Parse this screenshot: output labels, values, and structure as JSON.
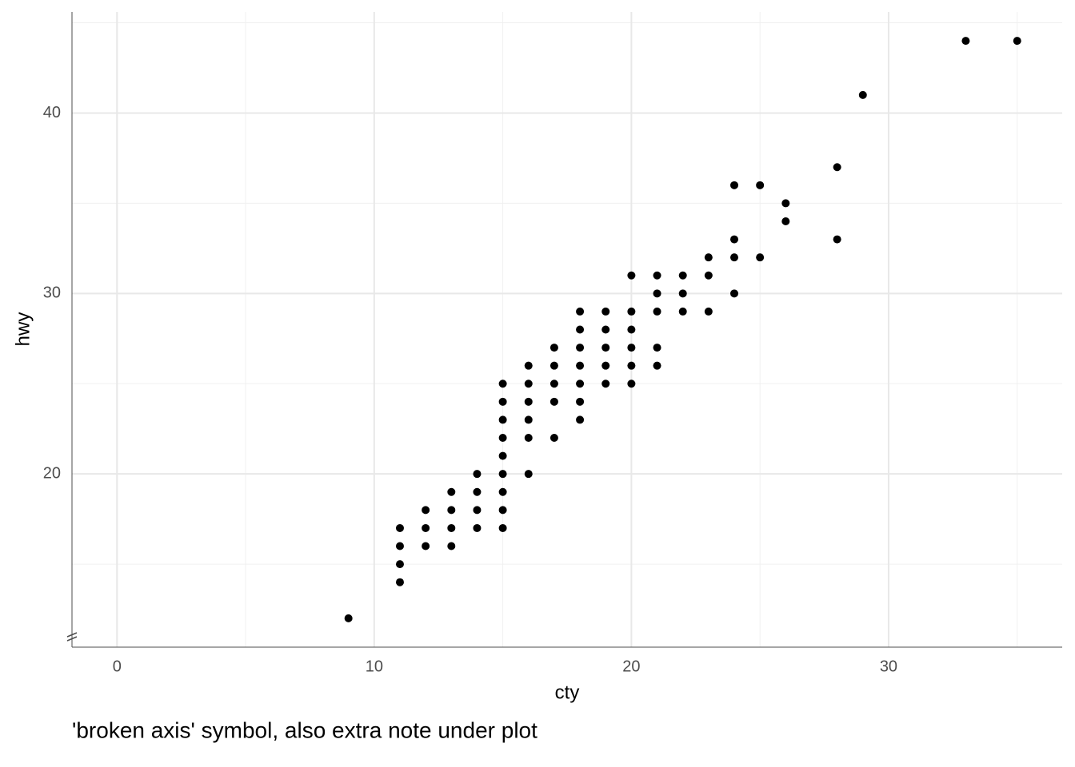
{
  "chart_data": {
    "type": "scatter",
    "x_label": "cty",
    "y_label": "hwy",
    "caption": "'broken axis' symbol, also extra note under plot",
    "color": "#000000",
    "x": [
      9,
      11,
      11,
      11,
      11,
      12,
      12,
      12,
      13,
      13,
      13,
      13,
      14,
      14,
      14,
      14,
      15,
      15,
      15,
      15,
      15,
      15,
      15,
      15,
      15,
      16,
      16,
      16,
      16,
      16,
      16,
      17,
      17,
      17,
      17,
      17,
      18,
      18,
      18,
      18,
      18,
      18,
      18,
      19,
      19,
      19,
      19,
      19,
      20,
      20,
      20,
      20,
      20,
      20,
      21,
      21,
      21,
      21,
      21,
      22,
      22,
      22,
      23,
      23,
      23,
      24,
      24,
      24,
      24,
      25,
      25,
      26,
      26,
      28,
      28,
      29,
      33,
      35
    ],
    "values": [
      12,
      14,
      15,
      16,
      17,
      16,
      17,
      18,
      16,
      17,
      18,
      19,
      17,
      18,
      19,
      20,
      17,
      18,
      19,
      20,
      21,
      22,
      23,
      24,
      25,
      20,
      22,
      23,
      24,
      25,
      26,
      22,
      24,
      25,
      26,
      27,
      23,
      24,
      25,
      26,
      27,
      28,
      29,
      25,
      26,
      27,
      28,
      29,
      25,
      26,
      27,
      28,
      29,
      31,
      26,
      27,
      29,
      30,
      31,
      29,
      30,
      31,
      29,
      31,
      32,
      30,
      32,
      33,
      36,
      32,
      36,
      34,
      35,
      33,
      37,
      41,
      44,
      44
    ],
    "xlim": [
      -1.75,
      36.75
    ],
    "ylim": [
      10.4,
      45.6
    ],
    "xticks": [
      0,
      10,
      20,
      30
    ],
    "yticks": [
      20,
      30,
      40
    ],
    "x_minor_grid": [
      5,
      15,
      25,
      35
    ],
    "y_minor_grid": [
      15,
      25,
      35,
      45
    ],
    "grid": true
  }
}
